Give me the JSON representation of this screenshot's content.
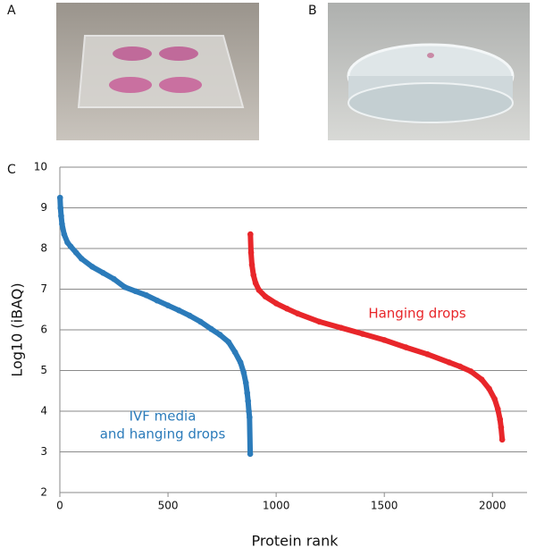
{
  "panel_labels": [
    "A",
    "B",
    "C"
  ],
  "chart_data": {
    "type": "scatter",
    "x_label": "Protein rank",
    "y_label": "Log10 (iBAQ)",
    "xlim": [
      0,
      2160
    ],
    "ylim": [
      2,
      10
    ],
    "xticks": [
      0,
      500,
      1000,
      1500,
      2000
    ],
    "yticks": [
      2,
      3,
      4,
      5,
      6,
      7,
      8,
      9,
      10
    ],
    "grid": true,
    "series": [
      {
        "color": "#2b7bba",
        "x": [
          1,
          3,
          6,
          10,
          20,
          35,
          50,
          75,
          100,
          150,
          200,
          250,
          300,
          350,
          400,
          450,
          500,
          550,
          600,
          650,
          700,
          740,
          780,
          810,
          835,
          850,
          860,
          866,
          870,
          874,
          877,
          880
        ],
        "values": [
          9.25,
          9.0,
          8.8,
          8.6,
          8.35,
          8.15,
          8.05,
          7.9,
          7.75,
          7.55,
          7.4,
          7.25,
          7.05,
          6.95,
          6.85,
          6.72,
          6.6,
          6.48,
          6.35,
          6.2,
          6.02,
          5.88,
          5.7,
          5.45,
          5.2,
          4.95,
          4.7,
          4.45,
          4.25,
          4.0,
          3.85,
          2.95
        ]
      },
      {
        "color": "#e8262a",
        "x": [
          881,
          884,
          888,
          895,
          905,
          920,
          950,
          1000,
          1050,
          1100,
          1200,
          1300,
          1400,
          1500,
          1600,
          1700,
          1800,
          1850,
          1900,
          1950,
          1985,
          2010,
          2025,
          2035,
          2040,
          2045
        ],
        "values": [
          8.35,
          7.9,
          7.6,
          7.35,
          7.15,
          6.98,
          6.82,
          6.65,
          6.52,
          6.4,
          6.2,
          6.05,
          5.9,
          5.75,
          5.57,
          5.4,
          5.2,
          5.1,
          4.98,
          4.78,
          4.55,
          4.3,
          4.05,
          3.8,
          3.6,
          3.3
        ]
      }
    ],
    "annotations": [
      {
        "lines": [
          "IVF media",
          "and hanging drops"
        ]
      },
      {
        "lines": [
          "Hanging drops"
        ]
      }
    ]
  }
}
